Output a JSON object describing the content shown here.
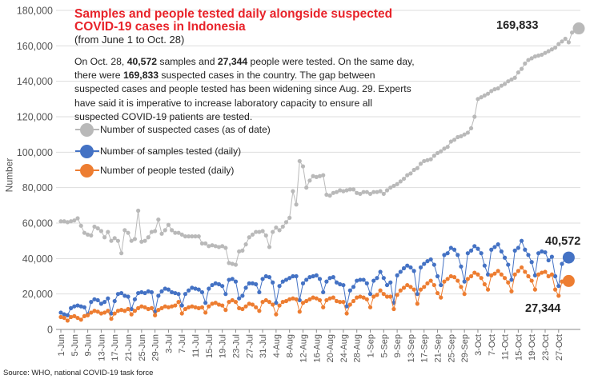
{
  "title_line1": "Samples and people tested daily alongside suspected",
  "title_line2": "COVID-19 cases in Indonesia",
  "subtitle": "(from June 1 to Oct. 28)",
  "description": {
    "p1": "On Oct. 28, ",
    "samples": "40,572",
    "p2": " samples and ",
    "people": "27,344",
    "p3": " people were tested. On the same day, there were ",
    "suspected": "169,833",
    "p4": " suspected cases in the country. The gap between suspected cases and people tested has been widening since Aug. 29. Experts have said it is imperative to increase laboratory capacity to ensure all suspected COVID-19 patients are tested."
  },
  "legend": [
    {
      "label": "Number of suspected cases (as of date)",
      "color": "#b9b9b9"
    },
    {
      "label": "Number of samples tested (daily)",
      "color": "#4472c4"
    },
    {
      "label": "Number of people tested (daily)",
      "color": "#ed7d31"
    }
  ],
  "end_labels": {
    "suspected": "169,833",
    "samples": "40,572",
    "people": "27,344"
  },
  "source": "Source: WHO, national COVID-19 task force",
  "chart_data": {
    "type": "line",
    "ylabel": "Number",
    "ylim": [
      0,
      180000
    ],
    "y_ticks": [
      "0",
      "20,000",
      "40,000",
      "60,000",
      "80,000",
      "100,000",
      "120,000",
      "140,000",
      "160,000",
      "180,000"
    ],
    "x_tick_labels": [
      "1-Jun",
      "5-Jun",
      "9-Jun",
      "13-Jun",
      "17-Jun",
      "21-Jun",
      "25-Jun",
      "29-Jun",
      "3-Jul",
      "7-Jul",
      "11-Jul",
      "15-Jul",
      "19-Jul",
      "23-Jul",
      "27-Jul",
      "31-Jul",
      "4-Aug",
      "8-Aug",
      "12-Aug",
      "16-Aug",
      "20-Aug",
      "24-Aug",
      "28-Aug",
      "1-Sep",
      "5-Sep",
      "9-Sep",
      "13-Sep",
      "17-Sep",
      "21-Sep",
      "25-Sep",
      "29-Sep",
      "3-Oct",
      "7-Oct",
      "11-Oct",
      "15-Oct",
      "19-Oct",
      "23-Oct",
      "27-Oct"
    ],
    "grid": "horizontal",
    "series": [
      {
        "name": "Number of suspected cases (as of date)",
        "color": "#b9b9b9",
        "values": [
          61000,
          61000,
          60500,
          61000,
          61500,
          62700,
          58500,
          54500,
          53500,
          53000,
          58000,
          57000,
          55500,
          52000,
          55000,
          50000,
          51500,
          50000,
          43000,
          56000,
          54500,
          50000,
          51000,
          67000,
          49500,
          50000,
          52000,
          55000,
          55500,
          62000,
          54000,
          56000,
          59000,
          56000,
          54500,
          54500,
          53500,
          52500,
          52500,
          52500,
          52500,
          52500,
          48500,
          48500,
          47000,
          47500,
          47000,
          46500,
          47000,
          46000,
          37500,
          37000,
          36500,
          44000,
          44500,
          48000,
          52000,
          53500,
          55000,
          55000,
          55500,
          53000,
          46500,
          55000,
          57500,
          56000,
          58000,
          60500,
          63000,
          78000,
          70500,
          95000,
          92000,
          80000,
          84000,
          86500,
          86000,
          86500,
          87000,
          76000,
          75500,
          77000,
          77500,
          78500,
          78000,
          78500,
          79000,
          79000,
          77000,
          76500,
          77500,
          77500,
          76500,
          77500,
          77500,
          78000,
          76500,
          78500,
          80000,
          81000,
          82000,
          83500,
          85000,
          87000,
          88000,
          90000,
          91000,
          93500,
          95000,
          95500,
          96000,
          98000,
          99500,
          100500,
          102000,
          103000,
          106000,
          107000,
          108500,
          109000,
          110000,
          111000,
          113500,
          120000,
          130000,
          131000,
          132000,
          133000,
          134500,
          135500,
          136000,
          137500,
          138500,
          140000,
          141000,
          142000,
          145000,
          147000,
          150000,
          152000,
          153000,
          154000,
          154500,
          155000,
          156000,
          157000,
          158000,
          159000,
          161000,
          162500,
          164000,
          162000,
          167500,
          168500,
          169833
        ]
      },
      {
        "name": "Number of samples tested (daily)",
        "color": "#4472c4",
        "values": [
          9500,
          8500,
          8000,
          12000,
          13000,
          13500,
          13000,
          12500,
          8500,
          15500,
          17000,
          16500,
          14500,
          15500,
          17500,
          9000,
          16000,
          20000,
          20500,
          19000,
          18500,
          11500,
          17000,
          20500,
          21000,
          20500,
          21500,
          21000,
          10000,
          19000,
          21500,
          23000,
          22500,
          21000,
          20500,
          20000,
          13500,
          20000,
          22000,
          23500,
          23000,
          22500,
          21000,
          15000,
          23000,
          25000,
          26000,
          25500,
          24500,
          20000,
          28000,
          28500,
          27000,
          17500,
          19000,
          23500,
          26000,
          26000,
          25500,
          21000,
          28500,
          30000,
          29500,
          26500,
          15000,
          24500,
          27000,
          28000,
          29000,
          30000,
          30000,
          16500,
          26000,
          28000,
          29500,
          30000,
          30500,
          28500,
          21000,
          27000,
          29000,
          29500,
          26500,
          25500,
          25000,
          13000,
          22000,
          24000,
          27500,
          28000,
          28000,
          26000,
          20000,
          27500,
          29000,
          32500,
          29000,
          25000,
          26500,
          15000,
          30500,
          32500,
          34500,
          36000,
          35000,
          33000,
          20000,
          35000,
          37000,
          38500,
          39500,
          36500,
          30000,
          25000,
          42000,
          43000,
          46000,
          45000,
          42000,
          35500,
          27000,
          43000,
          44500,
          47000,
          45500,
          43000,
          36000,
          31000,
          45000,
          46500,
          48000,
          44000,
          40500,
          36500,
          28000,
          44500,
          46000,
          50000,
          45000,
          42000,
          38000,
          30500,
          43000,
          44000,
          43500,
          39000,
          41000,
          30000,
          24500,
          37000,
          40000,
          40572
        ]
      },
      {
        "name": "Number of people tested (daily)",
        "color": "#ed7d31",
        "values": [
          7000,
          6500,
          5000,
          7000,
          7500,
          6500,
          5500,
          7500,
          8000,
          9500,
          10500,
          10000,
          9000,
          9500,
          10500,
          6000,
          9000,
          10500,
          11000,
          10500,
          11500,
          8500,
          10500,
          12000,
          13000,
          12500,
          11500,
          12000,
          8000,
          11000,
          12000,
          13000,
          12500,
          13000,
          13500,
          15500,
          9000,
          11500,
          12500,
          13000,
          12500,
          12000,
          12500,
          9500,
          13000,
          14500,
          15000,
          14000,
          13500,
          11000,
          15500,
          16500,
          15500,
          12000,
          11500,
          13000,
          14500,
          14000,
          12500,
          10500,
          15500,
          16500,
          15500,
          14000,
          8500,
          13500,
          15500,
          16000,
          17000,
          17500,
          17000,
          10000,
          15000,
          16000,
          17000,
          18000,
          17500,
          16500,
          12500,
          16500,
          17500,
          18000,
          16000,
          15500,
          15500,
          9000,
          14000,
          16000,
          18000,
          18500,
          18000,
          17000,
          12500,
          18500,
          19500,
          22000,
          20000,
          18500,
          18500,
          11500,
          19500,
          22000,
          23500,
          25000,
          24000,
          22500,
          14500,
          22500,
          24000,
          26000,
          27500,
          25000,
          20500,
          18000,
          27000,
          28500,
          30000,
          29500,
          27500,
          24000,
          20000,
          28500,
          30000,
          32000,
          31000,
          29000,
          25500,
          22500,
          30500,
          31500,
          33000,
          31000,
          29000,
          26500,
          21500,
          31000,
          33000,
          35000,
          32500,
          30000,
          27500,
          22500,
          31000,
          32000,
          32500,
          30000,
          31000,
          22500,
          19000,
          27000,
          28000,
          27344
        ]
      }
    ]
  }
}
